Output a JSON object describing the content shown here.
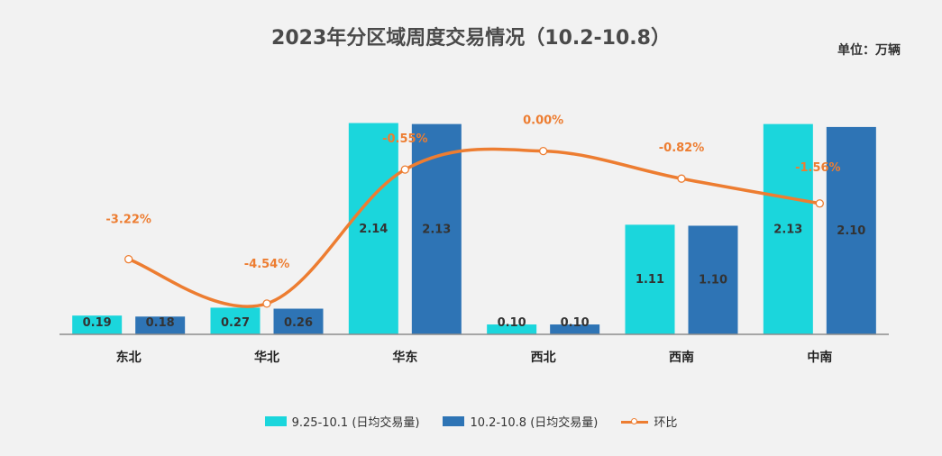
{
  "chart_data": {
    "type": "bar",
    "title": "2023年分区域周度交易情况（10.2-10.8）",
    "unit_label": "单位：万辆",
    "categories": [
      "东北",
      "华北",
      "华东",
      "西北",
      "西南",
      "中南"
    ],
    "series": [
      {
        "name": "9.25-10.1 (日均交易量)",
        "type": "bar",
        "color": "#1bd6dc",
        "values": [
          0.19,
          0.27,
          2.14,
          0.1,
          1.11,
          2.13
        ]
      },
      {
        "name": "10.2-10.8  (日均交易量)",
        "type": "bar",
        "color": "#2e74b5",
        "values": [
          0.18,
          0.26,
          2.13,
          0.1,
          1.1,
          2.1
        ]
      },
      {
        "name": "环比",
        "type": "line",
        "color": "#ed7d31",
        "unit": "%",
        "values": [
          -3.22,
          -4.54,
          -0.55,
          0.0,
          -0.82,
          -1.56
        ],
        "labels": [
          "-3.22%",
          "-4.54%",
          "-0.55%",
          "0.00%",
          "-0.82%",
          "-1.56%"
        ]
      }
    ],
    "ylim": [
      0,
      2.3
    ],
    "y2lim": [
      -5,
      0.5
    ],
    "legend_position": "bottom",
    "grid": false
  }
}
